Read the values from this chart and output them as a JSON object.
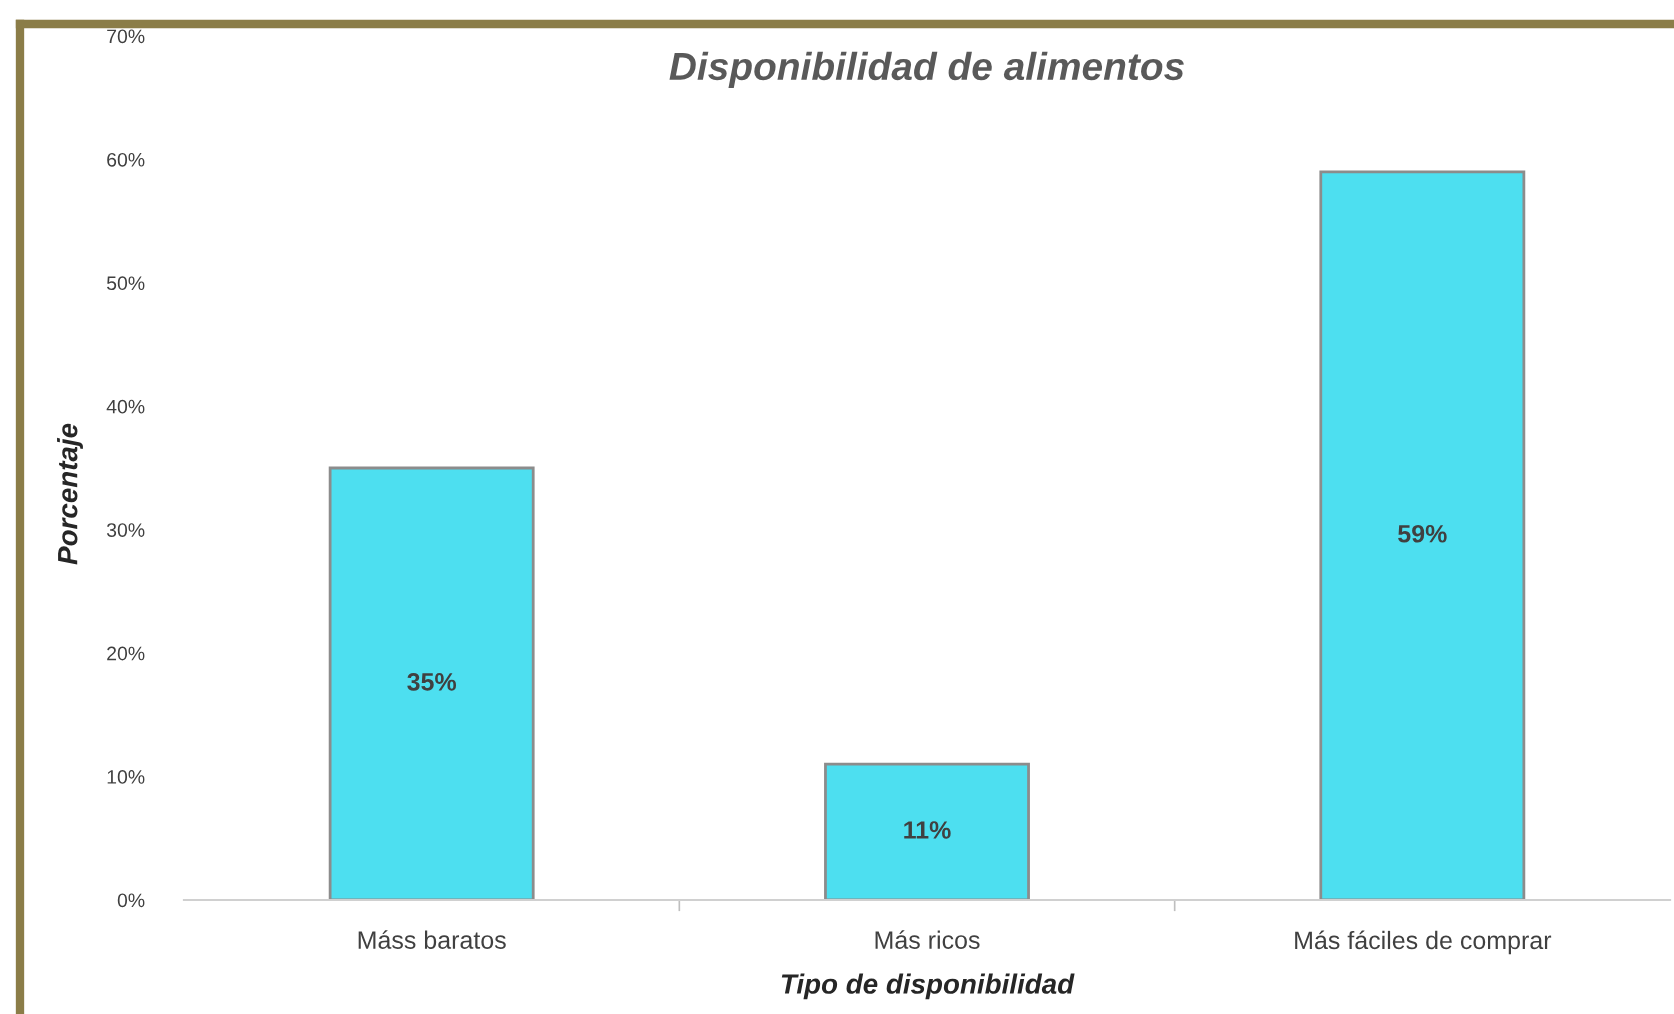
{
  "chart_data": {
    "type": "bar",
    "title": "Disponibilidad de alimentos",
    "xlabel": "Tipo de disponibilidad",
    "ylabel": "Porcentaje",
    "categories": [
      "Máss baratos",
      "Más ricos",
      "Más fáciles de comprar"
    ],
    "values": [
      35,
      11,
      59
    ],
    "color": "#4ddff0",
    "value_labels": [
      "35%",
      "11%",
      "59%"
    ],
    "ylim": [
      0,
      70
    ],
    "yticks": [
      {
        "value": 0,
        "label": "0%"
      },
      {
        "value": 10,
        "label": "10%"
      },
      {
        "value": 20,
        "label": "20%"
      },
      {
        "value": 30,
        "label": "30%"
      },
      {
        "value": 40,
        "label": "40%"
      },
      {
        "value": 50,
        "label": "50%"
      },
      {
        "value": 60,
        "label": "60%"
      },
      {
        "value": 70,
        "label": "70%"
      }
    ]
  }
}
